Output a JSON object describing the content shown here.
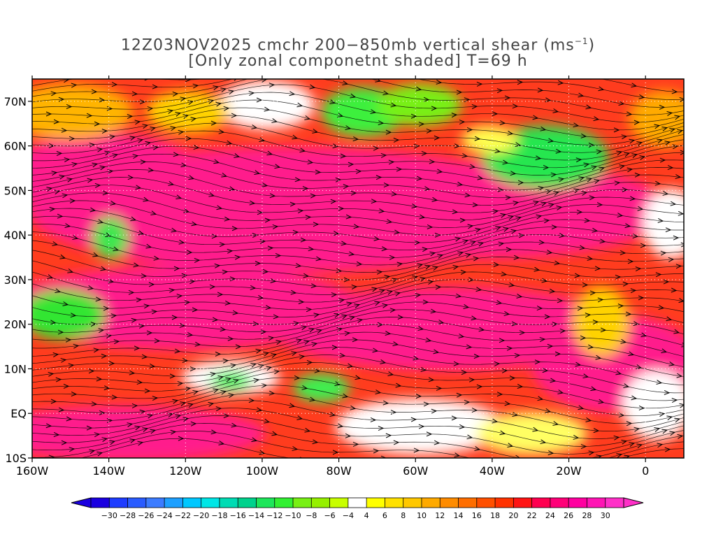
{
  "title": {
    "line1_main": "12Z03NOV2025 cmchr 200−850mb vertical shear (ms",
    "line1_sup": "−1",
    "line1_end": ")",
    "line2": "[Only zonal componetnt shaded] T=69 h"
  },
  "map": {
    "lon_labels": [
      "160W",
      "140W",
      "120W",
      "100W",
      "80W",
      "60W",
      "40W",
      "20W",
      "0"
    ],
    "lat_labels": [
      "70N",
      "60N",
      "50N",
      "40N",
      "30N",
      "20N",
      "10N",
      "EQ",
      "10S"
    ],
    "lon_values": [
      -160,
      -140,
      -120,
      -100,
      -80,
      -60,
      -40,
      -20,
      0
    ],
    "lat_values": [
      70,
      60,
      50,
      40,
      30,
      20,
      10,
      0,
      -10
    ],
    "lon_range": [
      -160,
      10
    ],
    "lat_range": [
      -10,
      75
    ],
    "grid": "dotted"
  },
  "colorbar": {
    "labels": [
      "−30",
      "−28",
      "−26",
      "−24",
      "−22",
      "−20",
      "−18",
      "−16",
      "−14",
      "−12",
      "−10",
      "−8",
      "−6",
      "−4",
      "4",
      "6",
      "8",
      "10",
      "12",
      "14",
      "16",
      "18",
      "20",
      "22",
      "24",
      "26",
      "28",
      "30"
    ],
    "colors": [
      "#1a00e0",
      "#1e3cff",
      "#2a5cff",
      "#3c7cff",
      "#1ea0ff",
      "#00c8ff",
      "#00e6e6",
      "#00dcb4",
      "#00d28c",
      "#1ee65a",
      "#32f032",
      "#78f014",
      "#96f000",
      "#c8ff00",
      "#ffffff",
      "#ffff00",
      "#ffe100",
      "#ffc800",
      "#ffaa00",
      "#ff8c00",
      "#ff6e00",
      "#ff5000",
      "#ff3200",
      "#ff1414",
      "#ff0050",
      "#ff0078",
      "#ff00a0",
      "#ff14b4",
      "#ff30c8"
    ]
  }
}
